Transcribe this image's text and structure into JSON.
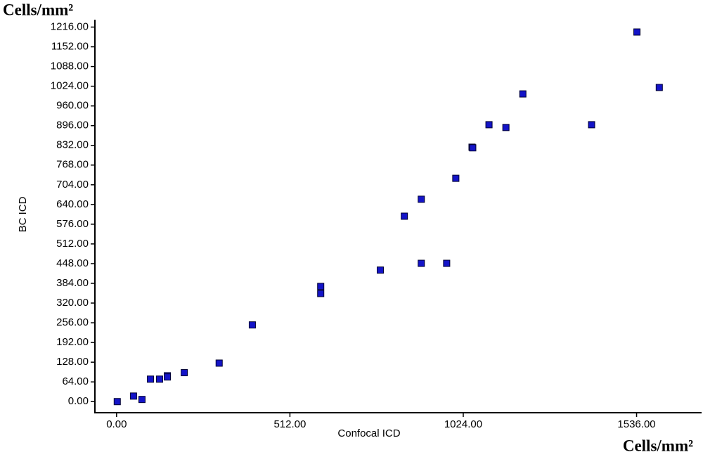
{
  "chart_data": {
    "type": "scatter",
    "x_label": "Confocal ICD",
    "y_label": "BC ICD",
    "annotations": [
      "Cells/mm²",
      "Cells/mm²"
    ],
    "xlim": [
      -64,
      1728
    ],
    "ylim": [
      -36,
      1240
    ],
    "xticks": [
      {
        "value": 0,
        "label": "0.00"
      },
      {
        "value": 512,
        "label": "512.00"
      },
      {
        "value": 1024,
        "label": "1024.00"
      },
      {
        "value": 1536,
        "label": "1536.00"
      }
    ],
    "yticks": [
      {
        "value": 0,
        "label": "0.00"
      },
      {
        "value": 64,
        "label": "64.00"
      },
      {
        "value": 128,
        "label": "128.00"
      },
      {
        "value": 192,
        "label": "192.00"
      },
      {
        "value": 256,
        "label": "256.00"
      },
      {
        "value": 320,
        "label": "320.00"
      },
      {
        "value": 384,
        "label": "384.00"
      },
      {
        "value": 448,
        "label": "448.00"
      },
      {
        "value": 512,
        "label": "512.00"
      },
      {
        "value": 576,
        "label": "576.00"
      },
      {
        "value": 640,
        "label": "640.00"
      },
      {
        "value": 704,
        "label": "704.00"
      },
      {
        "value": 768,
        "label": "768.00"
      },
      {
        "value": 832,
        "label": "832.00"
      },
      {
        "value": 896,
        "label": "896.00"
      },
      {
        "value": 960,
        "label": "960.00"
      },
      {
        "value": 1024,
        "label": "1024.00"
      },
      {
        "value": 1088,
        "label": "1088.00"
      },
      {
        "value": 1152,
        "label": "1152.00"
      },
      {
        "value": 1216,
        "label": "1216.00"
      }
    ],
    "color": "#1414c8",
    "x": [
      2,
      50,
      75,
      100,
      127,
      150,
      150,
      200,
      303,
      401,
      603,
      603,
      779,
      850,
      900,
      900,
      975,
      1002,
      1050,
      1052,
      1100,
      1150,
      1200,
      1403,
      1537,
      1603
    ],
    "values": [
      0,
      18,
      7,
      73,
      73,
      84,
      80,
      94,
      125,
      249,
      374,
      351,
      427,
      602,
      657,
      449,
      449,
      725,
      826,
      824,
      899,
      890,
      999,
      899,
      1200,
      1020
    ]
  }
}
